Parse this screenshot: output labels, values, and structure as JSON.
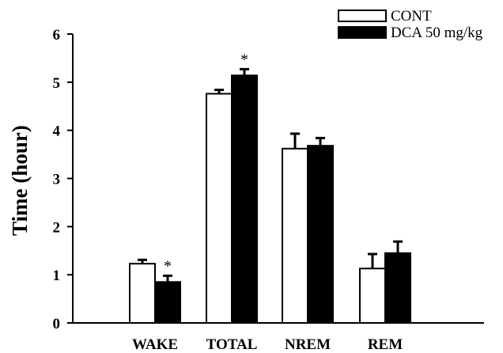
{
  "chart_data": {
    "type": "bar",
    "categories": [
      "WAKE",
      "TOTAL",
      "NREM",
      "REM"
    ],
    "series": [
      {
        "name": "CONT",
        "values": [
          1.23,
          4.76,
          3.62,
          1.13
        ],
        "errors": [
          0.08,
          0.08,
          0.31,
          0.3
        ],
        "fill": "#ffffff"
      },
      {
        "name": "DCA 50 mg/kg",
        "values": [
          0.85,
          5.14,
          3.68,
          1.45
        ],
        "errors": [
          0.13,
          0.13,
          0.16,
          0.24
        ],
        "fill": "#000000"
      }
    ],
    "significance": [
      {
        "category": "WAKE",
        "series": 1,
        "label": "*"
      },
      {
        "category": "TOTAL",
        "series": 1,
        "label": "*"
      }
    ],
    "ylabel": "Time (hour)",
    "xlabel": "",
    "ylim": [
      0,
      6
    ],
    "yticks": [
      "0",
      "1",
      "2",
      "3",
      "4",
      "5",
      "6"
    ],
    "legend_position": "top-right",
    "grid": false
  }
}
